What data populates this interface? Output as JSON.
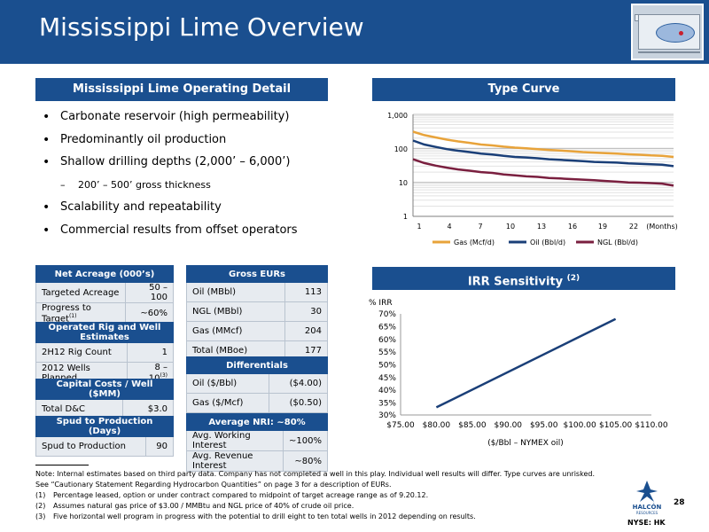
{
  "header": {
    "title": "Mississippi Lime Overview"
  },
  "operating_detail": {
    "heading": "Mississippi Lime Operating Detail",
    "bullets": [
      "Carbonate reservoir (high permeability)",
      "Predominantly oil production",
      "Shallow drilling depths (2,000’ – 6,000’)",
      "200’ – 500’ gross thickness",
      "Scalability and repeatability",
      "Commercial results from offset operators"
    ]
  },
  "tables": {
    "net_acreage": {
      "header": "Net Acreage (000’s)",
      "rows": [
        {
          "label": "Targeted Acreage",
          "value": "50 – 100"
        },
        {
          "label": "Progress to Target",
          "sup": "(1)",
          "value": "~60%"
        }
      ]
    },
    "rig_estimates": {
      "header": "Operated Rig and Well Estimates",
      "rows": [
        {
          "label": "2H12 Rig Count",
          "value": "1"
        },
        {
          "label": "2012 Wells Planned",
          "value": "8 – 10",
          "sup": "(3)"
        }
      ]
    },
    "capital_costs": {
      "header": "Capital Costs / Well ($MM)",
      "rows": [
        {
          "label": "Total D&C",
          "value": "$3.0"
        }
      ]
    },
    "spud": {
      "header": "Spud to Production (Days)",
      "rows": [
        {
          "label": "Spud to Production",
          "value": "90"
        }
      ]
    },
    "gross_eurs": {
      "header": "Gross EURs",
      "rows": [
        {
          "label": "Oil (MBbl)",
          "value": "113"
        },
        {
          "label": "NGL (MBbl)",
          "value": "30"
        },
        {
          "label": "Gas (MMcf)",
          "value": "204"
        },
        {
          "label": "Total (MBoe)",
          "value": "177"
        }
      ]
    },
    "differentials": {
      "header": "Differentials",
      "rows": [
        {
          "label": "Oil ($/Bbl)",
          "value": "($4.00)"
        },
        {
          "label": "Gas ($/Mcf)",
          "value": "($0.50)"
        }
      ]
    },
    "nri": {
      "header": "Average NRI: ~80%",
      "rows": [
        {
          "label": "Avg. Working Interest",
          "value": "~100%"
        },
        {
          "label": "Avg. Revenue Interest",
          "value": "~80%"
        }
      ]
    }
  },
  "type_curve": {
    "heading": "Type Curve",
    "months_label": "(Months)",
    "x_ticks": [
      "1",
      "4",
      "7",
      "10",
      "13",
      "16",
      "19",
      "22"
    ],
    "y_ticks": [
      "1,000",
      "100",
      "10",
      "1"
    ]
  },
  "irr": {
    "heading": "IRR Sensitivity",
    "heading_sup": "(2)",
    "ylabel": "% IRR",
    "xlabel": "($/Bbl – NYMEX oil)",
    "y_ticks": [
      "70%",
      "65%",
      "60%",
      "55%",
      "50%",
      "45%",
      "40%",
      "35%",
      "30%"
    ],
    "x_ticks": [
      "$75.00",
      "$80.00",
      "$85.00",
      "$90.00",
      "$95.00",
      "$100.00",
      "$105.00",
      "$110.00"
    ]
  },
  "chart_data": [
    {
      "type": "line",
      "title": "Type Curve",
      "xlabel": "(Months)",
      "ylabel": "",
      "yscale": "log",
      "xlim": [
        1,
        24
      ],
      "ylim": [
        1,
        1000
      ],
      "x": [
        1,
        2,
        3,
        4,
        5,
        6,
        7,
        8,
        9,
        10,
        11,
        12,
        13,
        14,
        15,
        16,
        17,
        18,
        19,
        20,
        21,
        22,
        23,
        24
      ],
      "series": [
        {
          "name": "Gas (Mcf/d)",
          "color": "#e8a33a",
          "values": [
            310,
            245,
            210,
            180,
            160,
            145,
            130,
            122,
            112,
            105,
            100,
            95,
            90,
            86,
            82,
            78,
            75,
            72,
            70,
            67,
            65,
            62,
            60,
            56
          ]
        },
        {
          "name": "Oil (Bbl/d)",
          "color": "#1a3f78",
          "values": [
            170,
            130,
            110,
            95,
            85,
            78,
            70,
            66,
            60,
            56,
            54,
            51,
            48,
            46,
            44,
            42,
            40,
            39,
            38,
            36,
            35,
            34,
            33,
            30
          ]
        },
        {
          "name": "NGL (Bbl/d)",
          "color": "#7a1f3f",
          "values": [
            48,
            37,
            31,
            27,
            24,
            22,
            20,
            19,
            17,
            16,
            15,
            14.5,
            13.5,
            13,
            12.5,
            12,
            11.5,
            11,
            10.5,
            10,
            9.8,
            9.5,
            9.2,
            8
          ]
        }
      ],
      "legend": "bottom",
      "grid": true
    },
    {
      "type": "line",
      "title": "IRR Sensitivity",
      "xlabel": "($/Bbl – NYMEX oil)",
      "ylabel": "% IRR",
      "xlim": [
        75,
        110
      ],
      "ylim": [
        30,
        70
      ],
      "x": [
        80,
        105
      ],
      "series": [
        {
          "name": "",
          "color": "#1a3f78",
          "values": [
            33,
            68
          ]
        }
      ],
      "grid": false
    }
  ],
  "footnotes": {
    "note": "Note: Internal estimates based on third party data. Company has not completed a well in this play. Individual well results will differ. Type curves are unrisked.",
    "see": "See “Cautionary Statement Regarding Hydrocarbon Quantities” on page 3 for a description of EURs.",
    "items": [
      {
        "n": "(1)",
        "text": "Percentage leased, option or under contract compared to midpoint of target acreage range as of 9.20.12."
      },
      {
        "n": "(2)",
        "text": "Assumes natural gas price of $3.00 / MMBtu and NGL price of 40% of crude oil price."
      },
      {
        "n": "(3)",
        "text": "Five horizontal well program in progress with the potential to drill eight to ten total wells in 2012 depending on results."
      }
    ]
  },
  "logo": {
    "name": "HALCÓN",
    "sub": "RESOURCES"
  },
  "page_number": "28",
  "ticker": "NYSE: HK",
  "colors": {
    "brand": "#1a4f8f",
    "gas": "#e8a33a",
    "oil": "#1a3f78",
    "ngl": "#7a1f3f"
  }
}
